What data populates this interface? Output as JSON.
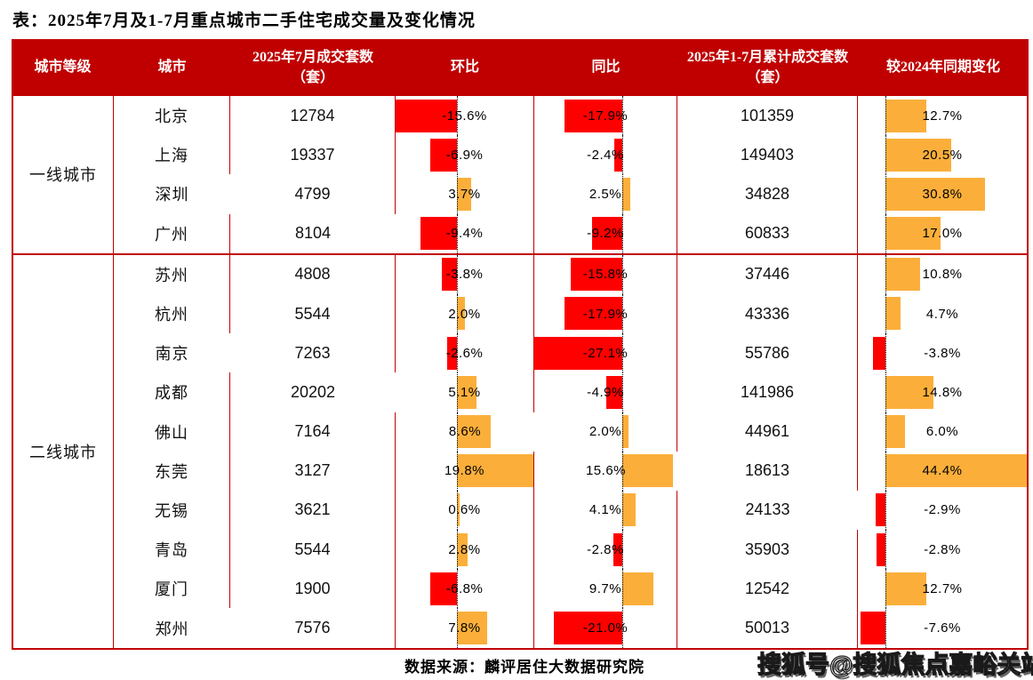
{
  "title": "表：2025年7月及1-7月重点城市二手住宅成交量及变化情况",
  "colors": {
    "header_bg": "#C00000",
    "table_border": "#C00000",
    "negative_bar": "#FF0000",
    "positive_bar": "#FBAF3A",
    "header_text": "#FFFFFF",
    "body_text": "#111111"
  },
  "chart_data": {
    "type": "table",
    "title": "2025年7月及1-7月重点城市二手住宅成交量及变化情况",
    "columns": [
      "城市等级",
      "城市",
      "2025年7月成交套数（套）",
      "环比",
      "同比",
      "2025年1-7月累计成交套数（套）",
      "较2024年同期变化"
    ],
    "bar_columns_note": "环比 / 同比 / 较2024年同期变化 are rendered as red(negative)/orange(positive) bars on a dotted zero axis",
    "groups": [
      {
        "tier": "一线城市",
        "rows": [
          {
            "city": "北京",
            "jul": "12784",
            "mom": -15.6,
            "mom_label": "-15.6%",
            "yoy": -17.9,
            "yoy_label": "-17.9%",
            "cum": "101359",
            "chg": 12.7,
            "chg_label": "12.7%"
          },
          {
            "city": "上海",
            "jul": "19337",
            "mom": -6.9,
            "mom_label": "-6.9%",
            "yoy": -2.4,
            "yoy_label": "-2.4%",
            "cum": "149403",
            "chg": 20.5,
            "chg_label": "20.5%"
          },
          {
            "city": "深圳",
            "jul": "4799",
            "mom": 3.7,
            "mom_label": "3.7%",
            "yoy": 2.5,
            "yoy_label": "2.5%",
            "cum": "34828",
            "chg": 30.8,
            "chg_label": "30.8%"
          },
          {
            "city": "广州",
            "jul": "8104",
            "mom": -9.4,
            "mom_label": "-9.4%",
            "yoy": -9.2,
            "yoy_label": "-9.2%",
            "cum": "60833",
            "chg": 17.0,
            "chg_label": "17.0%"
          }
        ]
      },
      {
        "tier": "二线城市",
        "rows": [
          {
            "city": "苏州",
            "jul": "4808",
            "mom": -3.8,
            "mom_label": "-3.8%",
            "yoy": -15.8,
            "yoy_label": "-15.8%",
            "cum": "37446",
            "chg": 10.8,
            "chg_label": "10.8%"
          },
          {
            "city": "杭州",
            "jul": "5544",
            "mom": 2.0,
            "mom_label": "2.0%",
            "yoy": -17.9,
            "yoy_label": "-17.9%",
            "cum": "43336",
            "chg": 4.7,
            "chg_label": "4.7%"
          },
          {
            "city": "南京",
            "jul": "7263",
            "mom": -2.6,
            "mom_label": "-2.6%",
            "yoy": -27.1,
            "yoy_label": "-27.1%",
            "cum": "55786",
            "chg": -3.8,
            "chg_label": "-3.8%"
          },
          {
            "city": "成都",
            "jul": "20202",
            "mom": 5.1,
            "mom_label": "5.1%",
            "yoy": -4.9,
            "yoy_label": "-4.9%",
            "cum": "141986",
            "chg": 14.8,
            "chg_label": "14.8%"
          },
          {
            "city": "佛山",
            "jul": "7164",
            "mom": 8.6,
            "mom_label": "8.6%",
            "yoy": 2.0,
            "yoy_label": "2.0%",
            "cum": "44961",
            "chg": 6.0,
            "chg_label": "6.0%"
          },
          {
            "city": "东莞",
            "jul": "3127",
            "mom": 19.8,
            "mom_label": "19.8%",
            "yoy": 15.6,
            "yoy_label": "15.6%",
            "cum": "18613",
            "chg": 44.4,
            "chg_label": "44.4%"
          },
          {
            "city": "无锡",
            "jul": "3621",
            "mom": 0.6,
            "mom_label": "0.6%",
            "yoy": 4.1,
            "yoy_label": "4.1%",
            "cum": "24133",
            "chg": -2.9,
            "chg_label": "-2.9%"
          },
          {
            "city": "青岛",
            "jul": "5544",
            "mom": 2.8,
            "mom_label": "2.8%",
            "yoy": -2.8,
            "yoy_label": "-2.8%",
            "cum": "35903",
            "chg": -2.8,
            "chg_label": "-2.8%"
          },
          {
            "city": "厦门",
            "jul": "1900",
            "mom": -6.8,
            "mom_label": "-6.8%",
            "yoy": 9.7,
            "yoy_label": "9.7%",
            "cum": "12542",
            "chg": 12.7,
            "chg_label": "12.7%"
          },
          {
            "city": "郑州",
            "jul": "7576",
            "mom": 7.8,
            "mom_label": "7.8%",
            "yoy": -21.0,
            "yoy_label": "-21.0%",
            "cum": "50013",
            "chg": -7.6,
            "chg_label": "-7.6%"
          }
        ]
      }
    ]
  },
  "footer": {
    "source": "数据来源：麟评居住大数据研究院",
    "watermark": "搜狐号@搜狐焦点嘉峪关站"
  }
}
